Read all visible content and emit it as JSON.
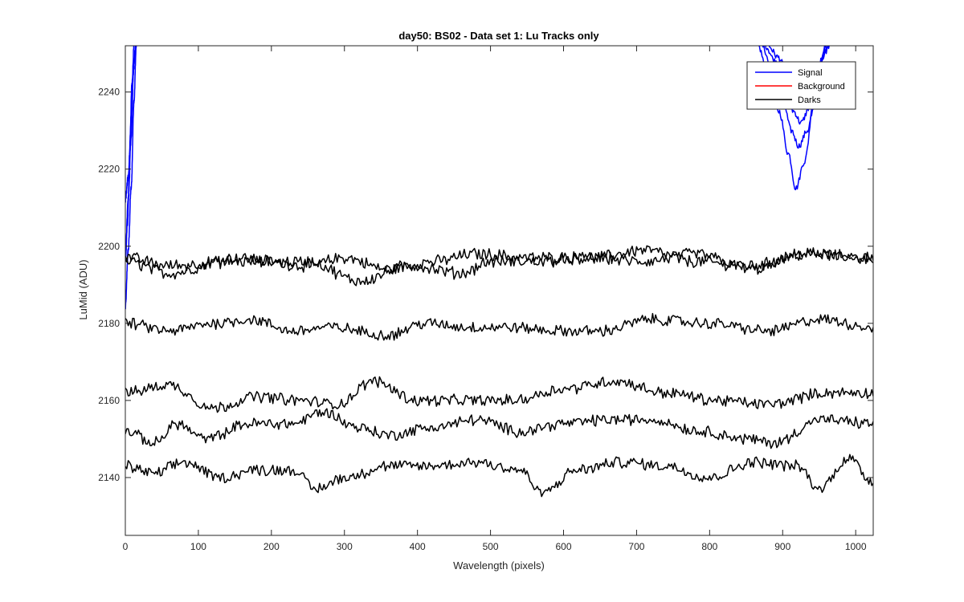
{
  "chart_data": {
    "type": "line",
    "title": "day50: BS02 - Data set 1: Lu Tracks only",
    "xlabel": "Wavelength (pixels)",
    "ylabel": "LuMid (ADU)",
    "xlim": [
      0,
      1024
    ],
    "ylim": [
      2125,
      2252
    ],
    "xticks": [
      0,
      100,
      200,
      300,
      400,
      500,
      600,
      700,
      800,
      900,
      1000
    ],
    "yticks": [
      2140,
      2160,
      2180,
      2200,
      2220,
      2240
    ],
    "grid": false,
    "legend_position": "top-right",
    "legend": [
      {
        "name": "Signal",
        "color": "#0000ff"
      },
      {
        "name": "Background",
        "color": "#ff0000"
      },
      {
        "name": "Darks",
        "color": "#000000"
      }
    ],
    "series": [
      {
        "name": "Signal",
        "color": "#0000ff",
        "note_clipped": true,
        "curves": [
          {
            "x": [
              0,
              4,
              8,
              12,
              15
            ],
            "y": [
              2184,
              2199,
              2215,
              2238,
              2252
            ]
          },
          {
            "x": [
              0,
              4,
              8,
              11,
              14
            ],
            "y": [
              2197,
              2212,
              2228,
              2245,
              2252
            ]
          },
          {
            "x": [
              0,
              4,
              8,
              12,
              14
            ],
            "y": [
              2212,
              2218,
              2232,
              2248,
              2252
            ]
          },
          {
            "x": [
              0,
              3,
              6,
              9,
              12
            ],
            "y": [
              2196,
              2206,
              2224,
              2242,
              2252
            ]
          },
          {
            "x": [
              866,
              880,
              895,
              908,
              918,
              930,
              942,
              950,
              958
            ],
            "y": [
              2252,
              2245,
              2235,
              2224,
              2215,
              2222,
              2236,
              2246,
              2252
            ]
          },
          {
            "x": [
              872,
              885,
              900,
              912,
              922,
              934,
              945,
              952,
              960
            ],
            "y": [
              2252,
              2246,
              2238,
              2230,
              2226,
              2230,
              2240,
              2248,
              2252
            ]
          },
          {
            "x": [
              876,
              890,
              904,
              915,
              925,
              937,
              948,
              955,
              962
            ],
            "y": [
              2252,
              2248,
              2241,
              2235,
              2232,
              2236,
              2243,
              2249,
              2252
            ]
          },
          {
            "x": [
              880,
              894,
              908,
              918,
              928,
              940,
              950,
              957,
              964
            ],
            "y": [
              2252,
              2249,
              2244,
              2239,
              2237,
              2241,
              2246,
              2250,
              2252
            ]
          }
        ]
      },
      {
        "name": "Background",
        "color": "#ff0000",
        "curves": []
      },
      {
        "name": "Darks",
        "color": "#000000",
        "curves": [
          {
            "x": [
              0,
              60,
              150,
              250,
              300,
              360,
              420,
              480,
              560,
              640,
              710,
              780,
              860,
              930,
              1024
            ],
            "y": [
              2196,
              2193,
              2197,
              2195,
              2197,
              2194,
              2196,
              2198,
              2197,
              2197,
              2199,
              2196,
              2195,
              2198,
              2197
            ],
            "noise": 1.4
          },
          {
            "x": [
              0,
              60,
              150,
              250,
              320,
              390,
              460,
              500,
              560,
              640,
              710,
              780,
              860,
              930,
              1024
            ],
            "y": [
              2197,
              2195,
              2196,
              2196,
              2191,
              2195,
              2193,
              2196,
              2196,
              2197,
              2196,
              2198,
              2194,
              2198,
              2197
            ],
            "noise": 1.4
          },
          {
            "x": [
              0,
              60,
              120,
              170,
              230,
              280,
              360,
              410,
              470,
              520,
              600,
              650,
              720,
              800,
              880,
              950,
              1024
            ],
            "y": [
              2180,
              2178,
              2180,
              2181,
              2178,
              2179,
              2177,
              2180,
              2179,
              2179,
              2178,
              2178,
              2181,
              2180,
              2178,
              2181,
              2179
            ],
            "noise": 1.3
          },
          {
            "x": [
              0,
              60,
              120,
              180,
              240,
              290,
              340,
              400,
              460,
              530,
              600,
              670,
              740,
              810,
              880,
              960,
              1024
            ],
            "y": [
              2162,
              2164,
              2158,
              2161,
              2160,
              2159,
              2165,
              2160,
              2160,
              2160,
              2163,
              2165,
              2162,
              2160,
              2159,
              2162,
              2162
            ],
            "noise": 1.3
          },
          {
            "x": [
              0,
              40,
              70,
              110,
              170,
              230,
              270,
              320,
              360,
              420,
              480,
              540,
              600,
              660,
              720,
              790,
              850,
              890,
              950,
              1024
            ],
            "y": [
              2152,
              2149,
              2154,
              2150,
              2154,
              2154,
              2157,
              2153,
              2151,
              2153,
              2155,
              2152,
              2154,
              2155,
              2155,
              2152,
              2150,
              2149,
              2155,
              2154
            ],
            "noise": 1.3
          },
          {
            "x": [
              0,
              40,
              80,
              130,
              180,
              230,
              260,
              300,
              360,
              420,
              480,
              540,
              570,
              620,
              680,
              740,
              800,
              860,
              920,
              950,
              990,
              1024
            ],
            "y": [
              2143,
              2141,
              2144,
              2140,
              2142,
              2142,
              2137,
              2140,
              2143,
              2143,
              2144,
              2142,
              2136,
              2142,
              2144,
              2143,
              2140,
              2144,
              2143,
              2137,
              2145,
              2139
            ],
            "noise": 1.3
          }
        ]
      }
    ]
  }
}
